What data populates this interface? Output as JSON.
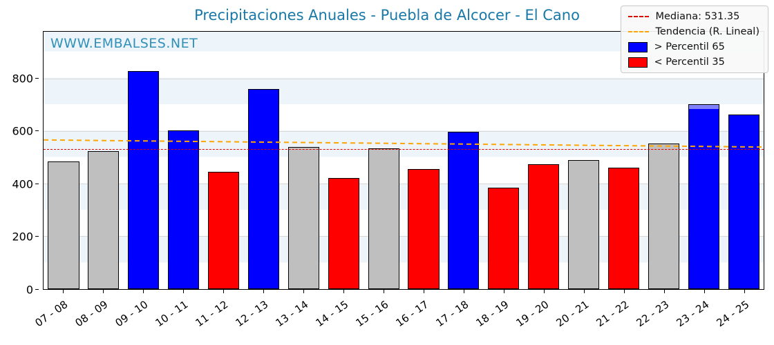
{
  "chart_data": {
    "type": "bar",
    "title": "Precipitaciones Anuales - Puebla de Alcocer - El Cano",
    "watermark": "WWW.EMBALSES.NET",
    "categories": [
      "07 - 08",
      "08 - 09",
      "09 - 10",
      "10 - 11",
      "11 - 12",
      "12 - 13",
      "13 - 14",
      "14 - 15",
      "15 - 16",
      "16 - 17",
      "17 - 18",
      "18 - 19",
      "19 - 20",
      "20 - 21",
      "21 - 22",
      "22 - 23",
      "23 - 24",
      "24 - 25"
    ],
    "values": [
      487,
      525,
      830,
      605,
      448,
      762,
      540,
      422,
      535,
      458,
      600,
      387,
      475,
      492,
      462,
      555,
      705,
      665
    ],
    "bar_colors": [
      "gray",
      "gray",
      "blue",
      "blue",
      "red",
      "blue",
      "gray",
      "red",
      "gray",
      "red",
      "blue",
      "red",
      "red",
      "gray",
      "red",
      "gray",
      "blue",
      "blue"
    ],
    "palette": {
      "blue": "#0000ff",
      "red": "#ff0000",
      "gray": "#bfbfbf"
    },
    "cap": {
      "index": 16,
      "start": 686,
      "color": "#8080f8"
    },
    "median": 531.35,
    "trend": {
      "start": 568,
      "end": 541,
      "color": "#ffa500"
    },
    "median_color": "#e00000",
    "ylim": [
      0,
      980
    ],
    "yticks": [
      0,
      200,
      400,
      600,
      800
    ],
    "grid": true,
    "legend_position": "top-right"
  },
  "legend": {
    "items": [
      {
        "label": "Mediana: 531.35",
        "swatch": "dashed-line",
        "color": "#e00000"
      },
      {
        "label": "Tendencia (R. Lineal)",
        "swatch": "dashed-line",
        "color": "#ffa500"
      },
      {
        "label": "> Percentil 65",
        "swatch": "box",
        "color": "#0000ff"
      },
      {
        "label": "< Percentil 35",
        "swatch": "box",
        "color": "#ff0000"
      }
    ]
  }
}
